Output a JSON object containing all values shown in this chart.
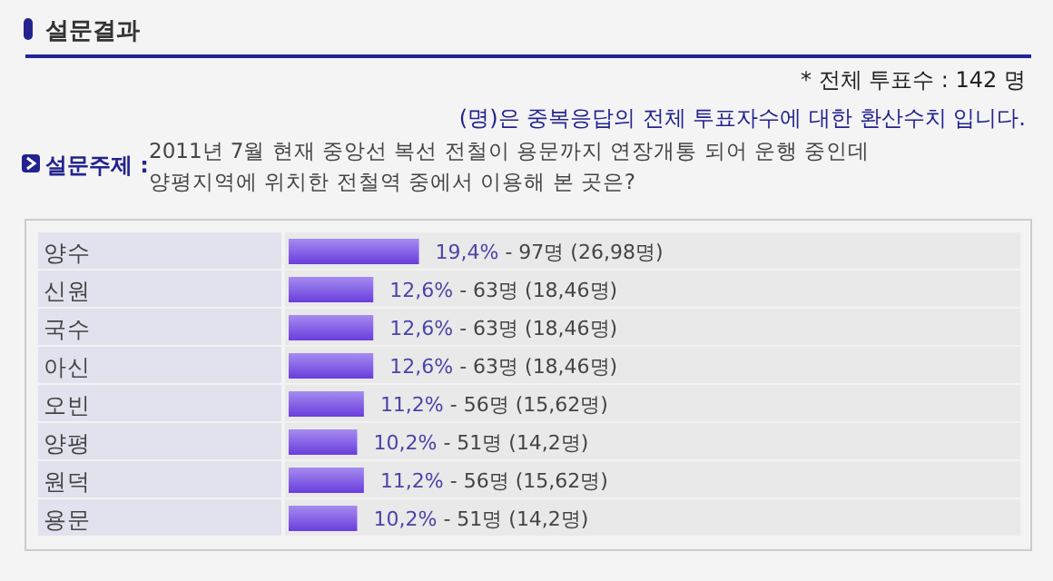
{
  "chart_data": {
    "type": "bar",
    "orientation": "horizontal",
    "title": "설문결과",
    "subtitle": "2011년 7월 현재 중앙선 복선 전철이 용문까지 연장개통 되어 운행 중인데\n양평지역에 위치한 전철역 중에서 이용해 본 곳은?",
    "annotations": [
      "* 전체 투표수 : 142 명",
      "(명)은 중복응답의 전체 투표자수에 대한 환산수치 입니다.",
      "설문주제 :"
    ],
    "categories": [
      "양수",
      "신원",
      "국수",
      "아신",
      "오빈",
      "양평",
      "원덕",
      "용문"
    ],
    "values": [
      19.4,
      12.6,
      12.6,
      12.6,
      11.2,
      10.2,
      11.2,
      10.2
    ],
    "value_labels": [
      "19,4% - 97명 (26,98명)",
      "12,6% - 63명 (18,46명)",
      "12,6% - 63명 (18,46명)",
      "12,6% - 63명 (18,46명)",
      "11,2% - 56명 (15,62명)",
      "10,2% - 51명 (14,2명)",
      "11,2% - 56명 (15,62명)",
      "10,2% - 51명 (14,2명)"
    ],
    "color": "#6a3ddc"
  }
}
